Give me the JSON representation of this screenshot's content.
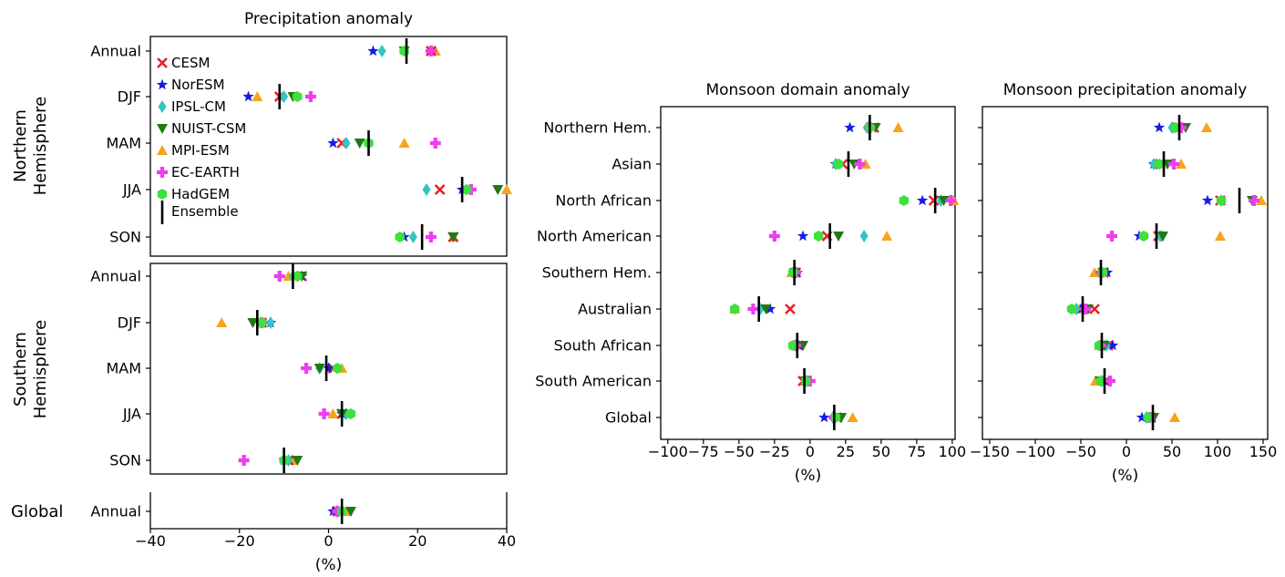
{
  "models": [
    {
      "name": "CESM",
      "marker": "x",
      "color": "#e8202a"
    },
    {
      "name": "NorESM",
      "marker": "star",
      "color": "#1a1ae6"
    },
    {
      "name": "IPSL-CM",
      "marker": "diamond",
      "color": "#33c4c4"
    },
    {
      "name": "NUIST-CSM",
      "marker": "tri-down",
      "color": "#1f7a12"
    },
    {
      "name": "MPI-ESM",
      "marker": "tri-up",
      "color": "#f5a41b"
    },
    {
      "name": "EC-EARTH",
      "marker": "plus",
      "color": "#f03cf0"
    },
    {
      "name": "HadGEM",
      "marker": "hexagon",
      "color": "#3de03d"
    }
  ],
  "ensemble_label": "Ensemble",
  "chart_data": [
    {
      "id": "precip",
      "type": "scatter",
      "title": "Precipitation anomaly",
      "xlabel": "(%)",
      "xlim": [
        -40,
        40
      ],
      "xticks": [
        -40,
        -20,
        0,
        20,
        40
      ],
      "xtick_labels": [
        "−40",
        "−20",
        "0",
        "20",
        "40"
      ],
      "legend": "upper-left of Northern Hemisphere panel",
      "groups": [
        {
          "label": "Northern Hemisphere",
          "label_lines": [
            "Northern",
            "Hemisphere"
          ],
          "rows": [
            {
              "label": "Annual",
              "values": [
                23,
                10,
                12,
                17,
                24,
                23,
                17
              ],
              "ensemble": 17.5
            },
            {
              "label": "DJF",
              "values": [
                -11,
                -18,
                -10,
                -8,
                -16,
                -4,
                -7
              ],
              "ensemble": -11
            },
            {
              "label": "MAM",
              "values": [
                3,
                1,
                4,
                7,
                17,
                24,
                9
              ],
              "ensemble": 9
            },
            {
              "label": "JJA",
              "values": [
                25,
                30,
                22,
                38,
                40,
                32,
                31
              ],
              "ensemble": 30
            },
            {
              "label": "SON",
              "values": [
                28,
                17,
                19,
                28,
                28,
                23,
                16
              ],
              "ensemble": 21
            }
          ]
        },
        {
          "label": "Southern Hemisphere",
          "label_lines": [
            "Southern",
            "Hemisphere"
          ],
          "rows": [
            {
              "label": "Annual",
              "values": [
                -6,
                -6,
                -8,
                -6,
                -9,
                -11,
                -7
              ],
              "ensemble": -8
            },
            {
              "label": "DJF",
              "values": [
                -15,
                -13,
                -13,
                -17,
                -24,
                -15,
                -15
              ],
              "ensemble": -16
            },
            {
              "label": "MAM",
              "values": [
                1,
                0,
                -2,
                -2,
                3,
                -5,
                2
              ],
              "ensemble": -0.5
            },
            {
              "label": "JJA",
              "values": [
                3,
                3,
                4,
                3,
                1,
                -1,
                5
              ],
              "ensemble": 3
            },
            {
              "label": "SON",
              "values": [
                -9,
                -10,
                -9,
                -7,
                -8,
                -19,
                -10
              ],
              "ensemble": -10
            }
          ]
        },
        {
          "label": "Global",
          "label_lines": [
            "Global"
          ],
          "rows": [
            {
              "label": "Annual",
              "values": [
                2,
                1,
                2,
                5,
                4,
                2,
                3
              ],
              "ensemble": 3
            }
          ]
        }
      ]
    },
    {
      "id": "domain",
      "type": "scatter",
      "title": "Monsoon domain anomaly",
      "xlabel": "(%)",
      "xlim": [
        -105,
        102
      ],
      "xticks": [
        -100,
        -75,
        -50,
        -25,
        0,
        25,
        50,
        75,
        100
      ],
      "xtick_labels": [
        "−100",
        "−75",
        "−50",
        "−25",
        "0",
        "25",
        "50",
        "75",
        "100"
      ],
      "rows": [
        {
          "label": "Northern Hem.",
          "values": [
            45,
            28,
            40,
            46,
            62,
            42,
            42
          ],
          "ensemble": 42
        },
        {
          "label": "Asian",
          "values": [
            23,
            18,
            18,
            31,
            39,
            35,
            20
          ],
          "ensemble": 27
        },
        {
          "label": "North African",
          "values": [
            87,
            79,
            92,
            94,
            101,
            99,
            66
          ],
          "ensemble": 88
        },
        {
          "label": "North American",
          "values": [
            12,
            -5,
            38,
            20,
            54,
            -25,
            6
          ],
          "ensemble": 14
        },
        {
          "label": "Southern Hem.",
          "values": [
            -10,
            -9,
            -11,
            -11,
            -13,
            -10,
            -12
          ],
          "ensemble": -11
        },
        {
          "label": "Australian",
          "values": [
            -14,
            -28,
            -35,
            -31,
            -53,
            -40,
            -53
          ],
          "ensemble": -36
        },
        {
          "label": "South African",
          "values": [
            -8,
            -8,
            -10,
            -5,
            -11,
            -10,
            -12
          ],
          "ensemble": -9
        },
        {
          "label": "South American",
          "values": [
            -5,
            -3,
            -2,
            -3,
            -3,
            0,
            -3
          ],
          "ensemble": -4
        },
        {
          "label": "Global",
          "values": [
            19,
            10,
            16,
            22,
            30,
            17,
            18
          ],
          "ensemble": 17
        }
      ]
    },
    {
      "id": "precip_monsoon",
      "type": "scatter",
      "title": "Monsoon precipitation anomaly",
      "xlabel": "(%)",
      "xlim": [
        -158,
        155
      ],
      "xticks": [
        -150,
        -100,
        -50,
        0,
        50,
        100,
        150
      ],
      "xtick_labels": [
        "−150",
        "−100",
        "−50",
        "0",
        "50",
        "100",
        "150"
      ],
      "rows": [
        {
          "label": "Northern Hem.",
          "values": [
            56,
            36,
            50,
            65,
            88,
            60,
            54
          ],
          "ensemble": 58
        },
        {
          "label": "Asian",
          "values": [
            37,
            30,
            30,
            45,
            60,
            52,
            36
          ],
          "ensemble": 41
        },
        {
          "label": "North African",
          "values": [
            103,
            89,
            104,
            138,
            148,
            140,
            104
          ],
          "ensemble": 124
        },
        {
          "label": "North American",
          "values": [
            35,
            14,
            37,
            40,
            103,
            -16,
            19
          ],
          "ensemble": 33
        },
        {
          "label": "Southern Hem.",
          "values": [
            -25,
            -21,
            -28,
            -26,
            -35,
            -28,
            -26
          ],
          "ensemble": -28
        },
        {
          "label": "Australian",
          "values": [
            -35,
            -50,
            -55,
            -42,
            -52,
            -45,
            -60
          ],
          "ensemble": -48
        },
        {
          "label": "South African",
          "values": [
            -20,
            -15,
            -22,
            -24,
            -30,
            -28,
            -30
          ],
          "ensemble": -27
        },
        {
          "label": "South American",
          "values": [
            -23,
            -24,
            -27,
            -29,
            -34,
            -18,
            -28
          ],
          "ensemble": -24
        },
        {
          "label": "Global",
          "values": [
            27,
            17,
            22,
            30,
            53,
            25,
            24
          ],
          "ensemble": 29
        }
      ]
    }
  ]
}
